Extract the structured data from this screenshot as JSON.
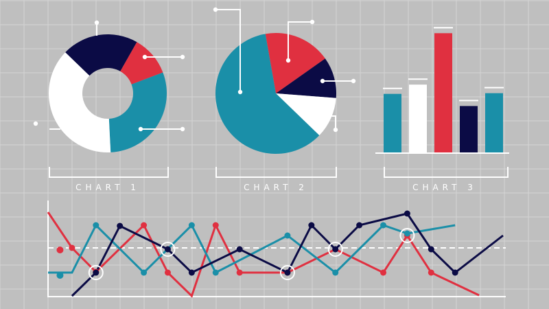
{
  "colors": {
    "background": "#bfbfbf",
    "navy": "#0b0b45",
    "red": "#e03040",
    "teal": "#1a8fa8",
    "white": "#ffffff"
  },
  "labels": {
    "chart1": "CHART 1",
    "chart2": "CHART 2",
    "chart3": "CHART 3"
  },
  "chart_data": [
    {
      "type": "pie",
      "variant": "donut",
      "label": "CHART 1",
      "slices": [
        {
          "color": "navy",
          "value": 21
        },
        {
          "color": "red",
          "value": 11
        },
        {
          "color": "teal",
          "value": 30
        },
        {
          "color": "white",
          "value": 38
        }
      ]
    },
    {
      "type": "pie",
      "label": "CHART 2",
      "slices": [
        {
          "color": "red",
          "value": 18
        },
        {
          "color": "navy",
          "value": 11
        },
        {
          "color": "white",
          "value": 11
        },
        {
          "color": "teal",
          "value": 60
        }
      ]
    },
    {
      "type": "bar",
      "label": "CHART 3",
      "bars": [
        {
          "color": "teal",
          "value": 82
        },
        {
          "color": "white",
          "value": 95
        },
        {
          "color": "red",
          "value": 167
        },
        {
          "color": "navy",
          "value": 65
        },
        {
          "color": "teal",
          "value": 83
        }
      ],
      "ylim": [
        0,
        175
      ]
    },
    {
      "type": "line",
      "xlim": [
        0,
        19
      ],
      "ylim": [
        0,
        140
      ],
      "reference_line": 71,
      "series": [
        {
          "color": "red",
          "points": [
            [
              0,
              123
            ],
            [
              1,
              71
            ],
            [
              2,
              36
            ],
            [
              4,
              104
            ],
            [
              5,
              35
            ],
            [
              6,
              1
            ],
            [
              7,
              104
            ],
            [
              8,
              35
            ],
            [
              10,
              35
            ],
            [
              12,
              69
            ],
            [
              14,
              35
            ],
            [
              15,
              89
            ],
            [
              16,
              35
            ],
            [
              18,
              2
            ]
          ],
          "markers": [
            1,
            2,
            3,
            4,
            6,
            7,
            8,
            10,
            11,
            12
          ]
        },
        {
          "color": "teal",
          "points": [
            [
              0,
              35
            ],
            [
              1,
              35
            ],
            [
              2,
              104
            ],
            [
              4,
              35
            ],
            [
              6,
              104
            ],
            [
              7,
              35
            ],
            [
              10,
              89
            ],
            [
              12,
              35
            ],
            [
              14,
              104
            ],
            [
              15,
              92
            ],
            [
              17,
              104
            ]
          ],
          "markers": [
            2,
            3,
            4,
            5,
            6,
            7,
            8,
            9
          ]
        },
        {
          "color": "navy",
          "points": [
            [
              1,
              1
            ],
            [
              2,
              35
            ],
            [
              3,
              103
            ],
            [
              5,
              69
            ],
            [
              6,
              35
            ],
            [
              8,
              69
            ],
            [
              10,
              35
            ],
            [
              11,
              104
            ],
            [
              12,
              69
            ],
            [
              13,
              104
            ],
            [
              15,
              121
            ],
            [
              16,
              69
            ],
            [
              17,
              35
            ],
            [
              19,
              89
            ]
          ],
          "markers": [
            1,
            2,
            3,
            4,
            5,
            6,
            7,
            8,
            9,
            10,
            11,
            12
          ]
        }
      ],
      "isolated_points": [
        {
          "color": "red",
          "x": 0.5,
          "y": 68
        },
        {
          "color": "teal",
          "x": 0.5,
          "y": 31
        }
      ],
      "highlighted_points": [
        [
          2,
          35
        ],
        [
          5,
          69
        ],
        [
          10,
          35
        ],
        [
          12,
          69
        ],
        [
          15,
          89
        ]
      ]
    }
  ]
}
